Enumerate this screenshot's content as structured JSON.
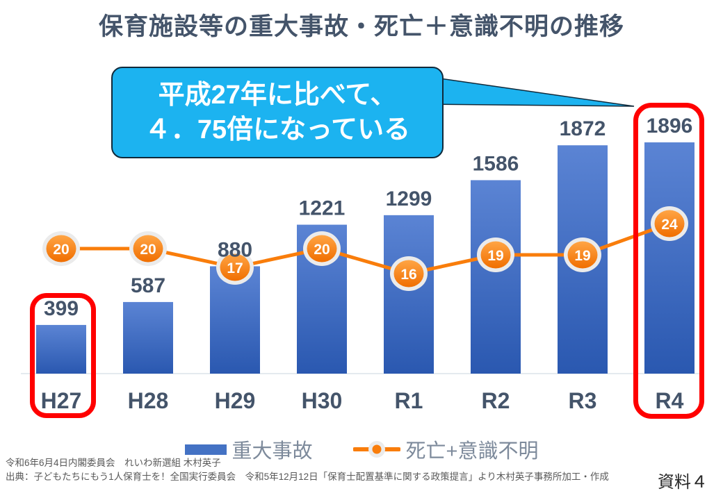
{
  "title": "保育施設等の重大事故・死亡＋意識不明の推移",
  "annotation": {
    "line1": "平成27年に比べて、",
    "line2": "４．75倍になっている"
  },
  "chart_data": {
    "type": "combo",
    "categories": [
      "H27",
      "H28",
      "H29",
      "H30",
      "R1",
      "R2",
      "R3",
      "R4"
    ],
    "series": [
      {
        "name": "重大事故",
        "type": "bar",
        "values": [
          399,
          587,
          880,
          1221,
          1299,
          1586,
          1872,
          1896
        ],
        "color": "#3a67c0"
      },
      {
        "name": "死亡+意識不明",
        "type": "line",
        "values": [
          20,
          20,
          17,
          20,
          16,
          19,
          19,
          24
        ],
        "color": "#f97d0b"
      }
    ],
    "data_labels": true,
    "highlighted_categories": [
      "H27",
      "R4"
    ],
    "legend_position": "bottom",
    "grid": false,
    "y_axis_visible": false,
    "primary_ylim": [
      0,
      1896
    ],
    "secondary_ylim": [
      0,
      24
    ]
  },
  "footer": {
    "line1": "令和6年6月4日内閣委員会　れいわ新選組 木村英子",
    "line2": "出典：子どもたちにもう1人保育士を！全国実行委員会　令和5年12月12日「保育士配置基準に関する政策提言」より木村英子事務所加工・作成",
    "doc_label": "資料４"
  },
  "colors": {
    "title_text": "#44546a",
    "bar_gradient_top": "#5b84d4",
    "bar_gradient_bottom": "#2a58b0",
    "legend_bar_swatch": "#4472c4",
    "line_orange": "#f97d0b",
    "marker_gradient_top": "#ffa545",
    "marker_gradient_bottom": "#f06e00",
    "marker_halo": "#ebebeb",
    "bubble_fill": "#1cb3f0",
    "highlight_red": "#ff0000",
    "legend_text": "#7d8a9b",
    "footer_text": "#595959",
    "axis_line": "#dce3ea"
  }
}
